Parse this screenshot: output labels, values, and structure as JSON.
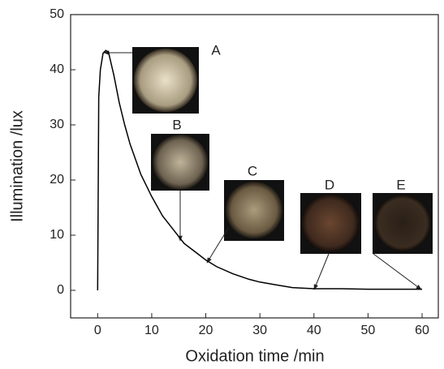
{
  "chart_data": {
    "type": "line",
    "x_label": "Oxidation time /min",
    "y_label": "Illumination /lux",
    "x": [
      0,
      0.2,
      0.5,
      1,
      1.5,
      2,
      3,
      4,
      5,
      6,
      8,
      10,
      12,
      14,
      16,
      18,
      20,
      22,
      25,
      28,
      30,
      33,
      36,
      40,
      45,
      50,
      55,
      60
    ],
    "values": [
      0,
      35,
      40,
      43,
      43.5,
      43.2,
      39,
      34,
      30,
      26.5,
      21,
      17,
      13.5,
      11,
      8.5,
      7,
      5.5,
      4.3,
      3,
      2,
      1.5,
      1,
      0.5,
      0.3,
      0.3,
      0.2,
      0.2,
      0.2
    ],
    "color": "#000000",
    "xlim": [
      -5,
      63
    ],
    "xticks": [
      0,
      10,
      20,
      30,
      40,
      50,
      60
    ],
    "ylim": [
      -5,
      50
    ],
    "yticks": [
      0,
      10,
      20,
      30,
      40,
      50
    ],
    "annotations": [
      "A",
      "B",
      "C",
      "D",
      "E"
    ]
  }
}
